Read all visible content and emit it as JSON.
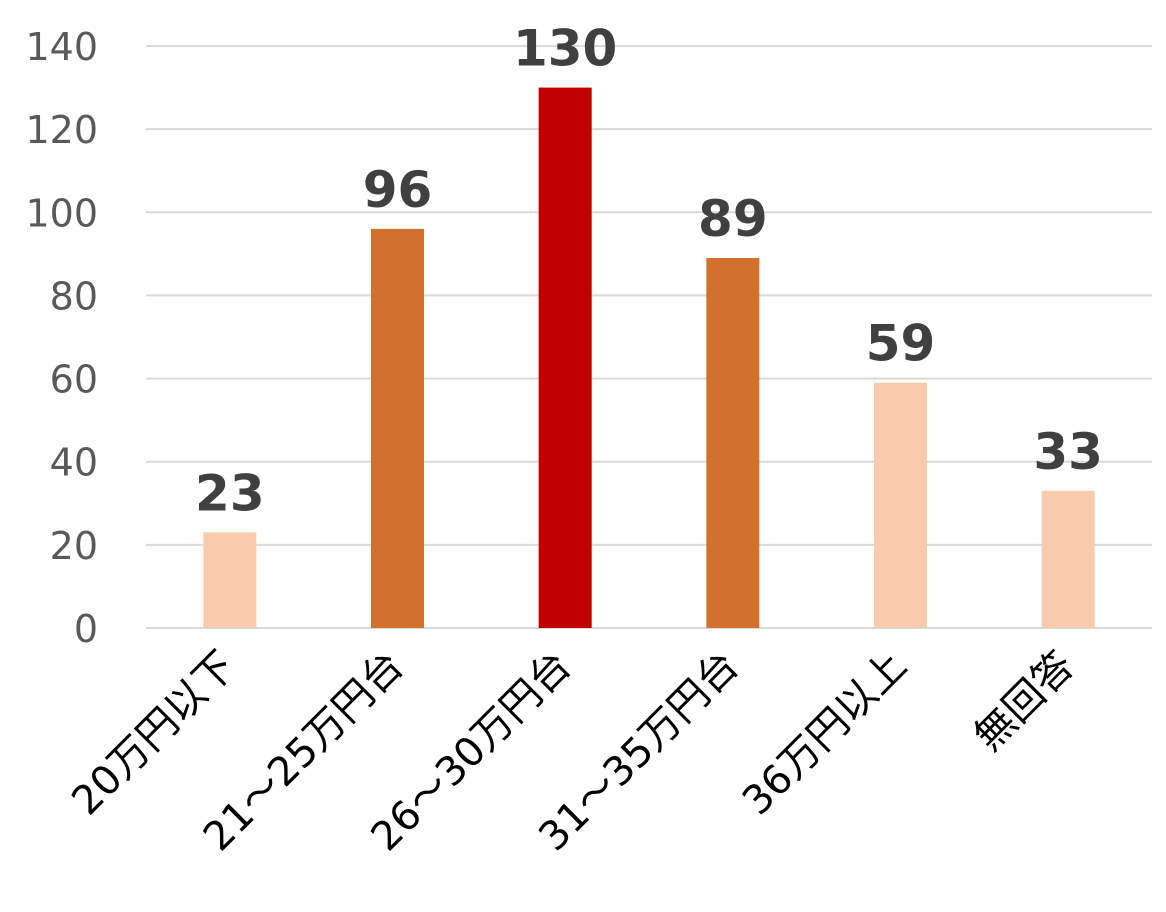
{
  "chart_data": {
    "type": "bar",
    "categories": [
      "20万円以下",
      "21～25万円台",
      "26～30万円台",
      "31～35万円台",
      "36万円以上",
      "無回答"
    ],
    "values": [
      23,
      96,
      130,
      89,
      59,
      33
    ],
    "data_labels": [
      "23",
      "96",
      "130",
      "89",
      "59",
      "33"
    ],
    "bar_colors": [
      "#F8CBAD",
      "#D2712E",
      "#C00000",
      "#D2712E",
      "#F8CBAD",
      "#F8CBAD"
    ],
    "yticks": [
      "0",
      "20",
      "40",
      "60",
      "80",
      "100",
      "120",
      "140"
    ],
    "ylim": [
      0,
      140
    ],
    "grid": true,
    "gridline_color": "#D9D9D9",
    "legend": "none"
  }
}
